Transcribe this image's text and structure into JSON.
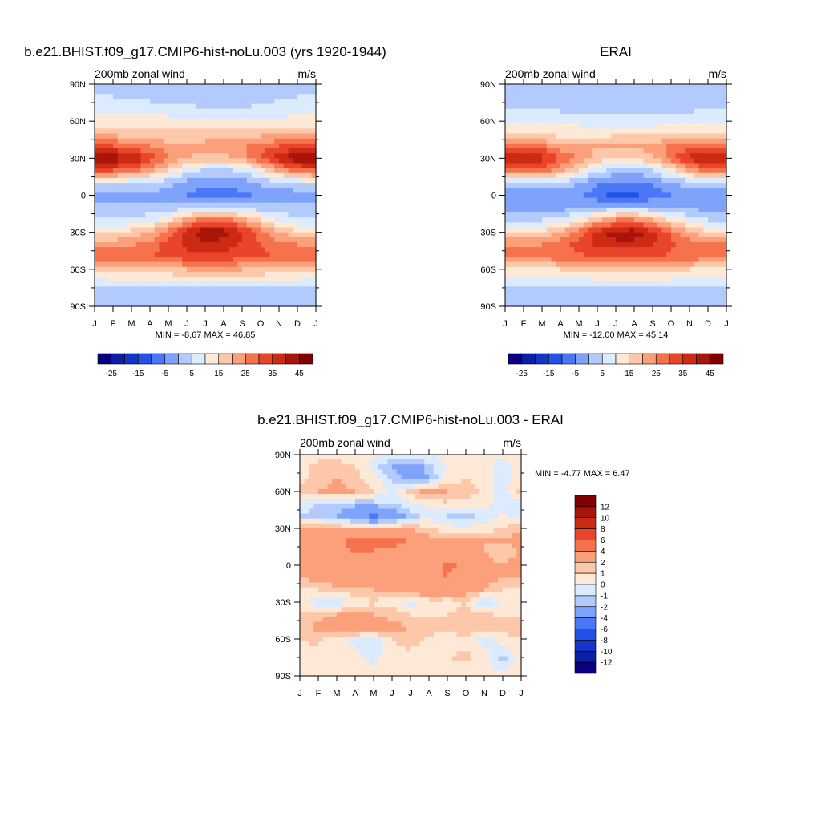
{
  "figure": {
    "panels": [
      {
        "id": "model",
        "title": "b.e21.BHIST.f09_g17.CMIP6-hist-noLu.003 (yrs 1920-1944)",
        "left_label": "200mb zonal wind",
        "right_label": "m/s",
        "minmax_text": "MIN =  -8.67 MAX =  46.85"
      },
      {
        "id": "obs",
        "title": "ERAI",
        "left_label": "200mb zonal wind",
        "right_label": "m/s",
        "minmax_text": "MIN = -12.00 MAX =  45.14"
      },
      {
        "id": "diff",
        "title": "b.e21.BHIST.f09_g17.CMIP6-hist-noLu.003 - ERAI",
        "left_label": "200mb zonal wind",
        "right_label": "m/s",
        "minmax_text": "MIN =  -4.77 MAX =   6.47"
      }
    ]
  },
  "chart_data": [
    {
      "type": "heatmap",
      "title": "b.e21.BHIST.f09_g17.CMIP6-hist-noLu.003 (yrs 1920-1944)",
      "variable": "200mb zonal wind",
      "units": "m/s",
      "x_tick_labels": [
        "J",
        "F",
        "M",
        "A",
        "M",
        "J",
        "J",
        "A",
        "S",
        "O",
        "N",
        "D",
        "J"
      ],
      "y_tick_labels": [
        "90N",
        "60N",
        "30N",
        "0",
        "30S",
        "60S",
        "90S"
      ],
      "y_range": [
        -90,
        90
      ],
      "min": -8.67,
      "max": 46.85,
      "colorbar": {
        "levels": [
          -25,
          -20,
          -15,
          -10,
          -5,
          0,
          5,
          10,
          15,
          20,
          25,
          30,
          35,
          40,
          45
        ],
        "labels": [
          "-25",
          "-15",
          "-5",
          "5",
          "15",
          "25",
          "35",
          "45"
        ],
        "colors": [
          "#08007f",
          "#0a1fa5",
          "#1336c9",
          "#2350e6",
          "#4a77f5",
          "#7fa2fb",
          "#b3cbfc",
          "#dcebfe",
          "#fee8d6",
          "#fdc8aa",
          "#fba07a",
          "#f5724c",
          "#e9452a",
          "#cd2a14",
          "#a8150a",
          "#800000"
        ]
      },
      "lat": [
        -90,
        -75,
        -60,
        -50,
        -40,
        -30,
        -20,
        -10,
        0,
        10,
        20,
        30,
        40,
        50,
        60,
        70,
        80,
        90
      ],
      "months": [
        "J",
        "F",
        "M",
        "A",
        "M",
        "J",
        "J",
        "A",
        "S",
        "O",
        "N",
        "D",
        "J"
      ],
      "values": [
        [
          2,
          2,
          2,
          2,
          2,
          2,
          2,
          2,
          2,
          2,
          2,
          2,
          2
        ],
        [
          5,
          5,
          5,
          5,
          5,
          5,
          5,
          5,
          5,
          5,
          5,
          5,
          5
        ],
        [
          15,
          16,
          16,
          17,
          18,
          20,
          21,
          21,
          20,
          19,
          17,
          16,
          15
        ],
        [
          28,
          30,
          29,
          30,
          32,
          33,
          34,
          33,
          32,
          31,
          30,
          29,
          28
        ],
        [
          24,
          23,
          24,
          27,
          32,
          36,
          38,
          37,
          34,
          30,
          27,
          25,
          24
        ],
        [
          14,
          15,
          17,
          20,
          28,
          38,
          45,
          44,
          36,
          28,
          20,
          16,
          14
        ],
        [
          5,
          5,
          6,
          8,
          13,
          22,
          28,
          28,
          22,
          15,
          9,
          6,
          5
        ],
        [
          1,
          1,
          1,
          1,
          1,
          2,
          3,
          3,
          3,
          2,
          1,
          1,
          1
        ],
        [
          -3,
          -3,
          -2,
          -1,
          -2,
          -5,
          -8,
          -8,
          -6,
          -4,
          -3,
          -3,
          -3
        ],
        [
          6,
          6,
          5,
          4,
          1,
          -2,
          -4,
          -4,
          -3,
          1,
          3,
          5,
          6
        ],
        [
          30,
          30,
          28,
          22,
          15,
          8,
          4,
          4,
          6,
          12,
          22,
          28,
          30
        ],
        [
          45,
          44,
          40,
          33,
          26,
          20,
          18,
          18,
          22,
          30,
          38,
          45,
          45
        ],
        [
          30,
          30,
          28,
          25,
          22,
          22,
          22,
          22,
          24,
          28,
          30,
          32,
          30
        ],
        [
          18,
          18,
          17,
          16,
          16,
          16,
          17,
          17,
          18,
          18,
          18,
          18,
          18
        ],
        [
          12,
          12,
          12,
          12,
          12,
          11,
          10,
          10,
          10,
          11,
          11,
          12,
          12
        ],
        [
          9,
          9,
          9,
          8,
          7,
          6,
          5,
          5,
          5,
          6,
          7,
          8,
          9
        ],
        [
          5,
          5,
          4,
          3,
          3,
          3,
          3,
          3,
          3,
          3,
          4,
          5,
          5
        ],
        [
          2,
          2,
          2,
          2,
          2,
          2,
          2,
          2,
          2,
          2,
          2,
          2,
          2
        ]
      ]
    },
    {
      "type": "heatmap",
      "title": "ERAI",
      "variable": "200mb zonal wind",
      "units": "m/s",
      "x_tick_labels": [
        "J",
        "F",
        "M",
        "A",
        "M",
        "J",
        "J",
        "A",
        "S",
        "O",
        "N",
        "D",
        "J"
      ],
      "y_tick_labels": [
        "90N",
        "60N",
        "30N",
        "0",
        "30S",
        "60S",
        "90S"
      ],
      "y_range": [
        -90,
        90
      ],
      "min": -12.0,
      "max": 45.14,
      "colorbar": {
        "levels": [
          -25,
          -20,
          -15,
          -10,
          -5,
          0,
          5,
          10,
          15,
          20,
          25,
          30,
          35,
          40,
          45
        ],
        "labels": [
          "-25",
          "-15",
          "-5",
          "5",
          "15",
          "25",
          "35",
          "45"
        ],
        "colors": [
          "#08007f",
          "#0a1fa5",
          "#1336c9",
          "#2350e6",
          "#4a77f5",
          "#7fa2fb",
          "#b3cbfc",
          "#dcebfe",
          "#fee8d6",
          "#fdc8aa",
          "#fba07a",
          "#f5724c",
          "#e9452a",
          "#cd2a14",
          "#a8150a",
          "#800000"
        ]
      },
      "lat": [
        -90,
        -75,
        -60,
        -50,
        -40,
        -30,
        -20,
        -10,
        0,
        10,
        20,
        30,
        40,
        50,
        60,
        70,
        80,
        90
      ],
      "months": [
        "J",
        "F",
        "M",
        "A",
        "M",
        "J",
        "J",
        "A",
        "S",
        "O",
        "N",
        "D",
        "J"
      ],
      "values": [
        [
          2,
          2,
          2,
          2,
          2,
          2,
          2,
          2,
          2,
          2,
          2,
          2,
          2
        ],
        [
          4,
          4,
          4,
          4,
          4,
          4,
          4,
          4,
          4,
          4,
          4,
          4,
          4
        ],
        [
          13,
          13,
          14,
          15,
          16,
          17,
          18,
          18,
          18,
          17,
          15,
          14,
          13
        ],
        [
          26,
          27,
          27,
          28,
          29,
          30,
          30,
          30,
          30,
          29,
          28,
          27,
          26
        ],
        [
          25,
          24,
          25,
          28,
          32,
          36,
          38,
          38,
          35,
          31,
          28,
          26,
          25
        ],
        [
          14,
          14,
          16,
          20,
          28,
          37,
          43,
          44,
          37,
          29,
          20,
          16,
          14
        ],
        [
          4,
          4,
          5,
          7,
          11,
          19,
          25,
          25,
          20,
          14,
          8,
          5,
          4
        ],
        [
          -2,
          -2,
          -2,
          -2,
          -1,
          0,
          1,
          1,
          1,
          0,
          -1,
          -2,
          -2
        ],
        [
          -5,
          -5,
          -4,
          -3,
          -4,
          -8,
          -12,
          -11,
          -8,
          -5,
          -4,
          -5,
          -5
        ],
        [
          4,
          5,
          4,
          3,
          0,
          -4,
          -6,
          -6,
          -4,
          0,
          2,
          4,
          4
        ],
        [
          28,
          28,
          27,
          22,
          14,
          7,
          2,
          2,
          5,
          12,
          22,
          27,
          28
        ],
        [
          42,
          42,
          38,
          30,
          24,
          18,
          16,
          16,
          20,
          28,
          36,
          42,
          42
        ],
        [
          28,
          28,
          26,
          22,
          20,
          20,
          20,
          20,
          22,
          26,
          28,
          30,
          28
        ],
        [
          14,
          14,
          13,
          13,
          13,
          13,
          14,
          14,
          14,
          14,
          14,
          14,
          14
        ],
        [
          9,
          9,
          9,
          9,
          8,
          7,
          7,
          7,
          7,
          8,
          8,
          9,
          9
        ],
        [
          5,
          5,
          4,
          4,
          3,
          3,
          3,
          3,
          3,
          4,
          4,
          5,
          5
        ],
        [
          3,
          3,
          2,
          2,
          2,
          2,
          2,
          2,
          2,
          2,
          3,
          3,
          3
        ],
        [
          1,
          1,
          1,
          1,
          1,
          1,
          1,
          1,
          1,
          1,
          1,
          1,
          1
        ]
      ]
    },
    {
      "type": "heatmap",
      "title": "b.e21.BHIST.f09_g17.CMIP6-hist-noLu.003 - ERAI",
      "variable": "200mb zonal wind",
      "units": "m/s",
      "x_tick_labels": [
        "J",
        "F",
        "M",
        "A",
        "M",
        "J",
        "J",
        "A",
        "S",
        "O",
        "N",
        "D",
        "J"
      ],
      "y_tick_labels": [
        "90N",
        "60N",
        "30N",
        "0",
        "30S",
        "60S",
        "90S"
      ],
      "y_range": [
        -90,
        90
      ],
      "min": -4.77,
      "max": 6.47,
      "colorbar": {
        "levels": [
          -12,
          -10,
          -8,
          -6,
          -4,
          -2,
          -1,
          0,
          1,
          2,
          4,
          6,
          8,
          10,
          12
        ],
        "labels": [
          "-12",
          "-10",
          "-8",
          "-6",
          "-4",
          "-2",
          "-1",
          "0",
          "1",
          "2",
          "4",
          "6",
          "8",
          "10",
          "12"
        ],
        "colors": [
          "#08007f",
          "#0a1fa5",
          "#1336c9",
          "#2350e6",
          "#4a77f5",
          "#7fa2fb",
          "#b3cbfc",
          "#dcebfe",
          "#fee8d6",
          "#fdc8aa",
          "#fba07a",
          "#f5724c",
          "#e9452a",
          "#cd2a14",
          "#a8150a",
          "#800000"
        ]
      },
      "lat": [
        -90,
        -75,
        -60,
        -50,
        -40,
        -30,
        -20,
        -10,
        0,
        10,
        20,
        30,
        40,
        50,
        60,
        70,
        80,
        90
      ],
      "months": [
        "J",
        "F",
        "M",
        "A",
        "M",
        "J",
        "J",
        "A",
        "S",
        "O",
        "N",
        "D",
        "J"
      ],
      "values": [
        [
          0.5,
          0.5,
          0.3,
          0.5,
          0.5,
          0.4,
          0.5,
          0.5,
          0.5,
          0.5,
          0.3,
          0.5,
          0.5
        ],
        [
          0.8,
          0.6,
          1.0,
          0.4,
          -0.5,
          0.8,
          0.6,
          0.8,
          1.0,
          1.2,
          0.4,
          -1.5,
          0.8
        ],
        [
          1.0,
          1.2,
          0.5,
          -0.5,
          -0.8,
          1.0,
          1.5,
          0.8,
          0.6,
          0.8,
          -0.5,
          0.6,
          1.0
        ],
        [
          1.5,
          2.5,
          3.0,
          3.5,
          3.0,
          2.5,
          2.0,
          1.5,
          1.2,
          1.6,
          2.0,
          1.5,
          1.5
        ],
        [
          1.0,
          1.5,
          2.0,
          2.5,
          2.0,
          1.5,
          1.0,
          0.8,
          1.0,
          1.5,
          1.2,
          0.8,
          1.0
        ],
        [
          0.2,
          -0.5,
          -1.0,
          0.5,
          0.8,
          0.5,
          -0.5,
          0.5,
          0.3,
          1.0,
          -1.5,
          0.5,
          0.2
        ],
        [
          0.8,
          1.0,
          1.5,
          1.8,
          2.0,
          2.5,
          3.0,
          3.5,
          3.5,
          2.8,
          2.0,
          1.0,
          0.8
        ],
        [
          2.0,
          2.5,
          3.0,
          3.5,
          3.0,
          2.5,
          3.0,
          3.5,
          4.0,
          3.0,
          2.5,
          2.0,
          2.0
        ],
        [
          3.0,
          3.5,
          3.5,
          3.0,
          2.5,
          2.0,
          2.5,
          3.0,
          4.5,
          3.5,
          2.5,
          2.0,
          3.0
        ],
        [
          2.0,
          3.0,
          3.5,
          4.0,
          3.5,
          3.0,
          2.5,
          2.0,
          2.0,
          2.5,
          2.0,
          1.5,
          2.0
        ],
        [
          2.5,
          3.0,
          3.5,
          4.5,
          6.0,
          5.0,
          3.5,
          2.5,
          2.0,
          2.0,
          2.0,
          2.0,
          2.5
        ],
        [
          2.0,
          2.5,
          2.0,
          1.5,
          1.0,
          1.5,
          2.0,
          1.0,
          0.3,
          0.2,
          0.5,
          1.0,
          2.0
        ],
        [
          -1.0,
          -1.5,
          -2.0,
          -3.0,
          -4.5,
          -3.0,
          -1.5,
          -0.5,
          -1.0,
          -1.5,
          -0.5,
          0.2,
          -1.0
        ],
        [
          -0.5,
          -1.0,
          -1.5,
          -1.8,
          -1.5,
          -1.0,
          -0.5,
          0.5,
          0.8,
          0.5,
          0.3,
          -0.5,
          -0.5
        ],
        [
          1.5,
          2.0,
          2.5,
          2.0,
          1.0,
          -0.5,
          1.5,
          2.5,
          2.0,
          1.5,
          0.8,
          -0.5,
          1.5
        ],
        [
          0.5,
          1.5,
          2.0,
          1.5,
          0.5,
          -1.0,
          -3.0,
          -2.0,
          0.5,
          1.0,
          0.5,
          -0.5,
          0.5
        ],
        [
          0.5,
          1.5,
          1.8,
          1.0,
          -0.5,
          -2.0,
          -3.0,
          -1.5,
          0.2,
          0.5,
          0.3,
          -0.5,
          0.5
        ],
        [
          0.2,
          0.2,
          0.2,
          0.2,
          0.2,
          0.2,
          0.2,
          0.2,
          0.2,
          0.2,
          0.2,
          0.2,
          0.2
        ]
      ]
    }
  ]
}
